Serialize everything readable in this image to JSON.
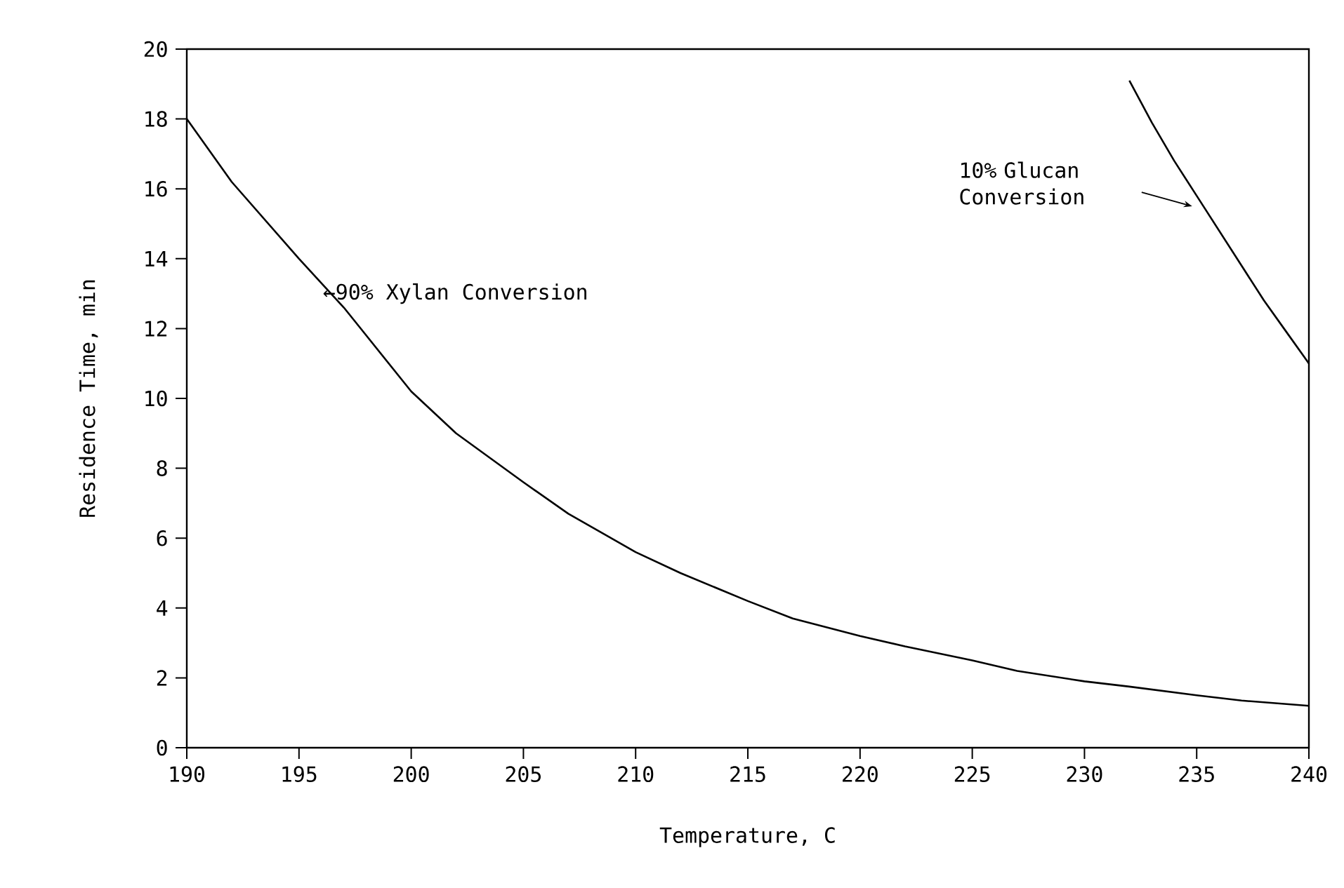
{
  "chart_data": {
    "type": "line",
    "xlabel": "Temperature, C",
    "ylabel": "Residence Time, min",
    "xlim": [
      190,
      240
    ],
    "xticks": [
      190,
      195,
      200,
      205,
      210,
      215,
      220,
      225,
      230,
      235,
      240
    ],
    "ylim": [
      0,
      20
    ],
    "yticks": [
      0,
      2,
      4,
      6,
      8,
      10,
      12,
      14,
      16,
      18,
      20
    ],
    "grid": false,
    "marker": "none",
    "line_style": "solid",
    "series": [
      {
        "color": "#000000",
        "x": [
          190,
          192,
          195,
          197,
          200,
          202,
          205,
          207,
          210,
          212,
          215,
          217,
          220,
          222,
          225,
          227,
          230,
          232,
          235,
          237,
          240
        ],
        "values": [
          18.0,
          16.2,
          14.0,
          12.6,
          10.2,
          9.0,
          7.6,
          6.7,
          5.6,
          5.0,
          4.2,
          3.7,
          3.2,
          2.9,
          2.5,
          2.2,
          1.9,
          1.75,
          1.5,
          1.35,
          1.2
        ]
      },
      {
        "color": "#000000",
        "x": [
          232,
          233,
          234,
          235,
          236,
          237,
          238,
          239,
          240
        ],
        "values": [
          19.1,
          17.9,
          16.8,
          15.8,
          14.8,
          13.8,
          12.8,
          11.9,
          11.0
        ]
      }
    ],
    "annotations": [
      "←90% Xylan Conversion",
      "10% Glucan Conversion"
    ]
  }
}
